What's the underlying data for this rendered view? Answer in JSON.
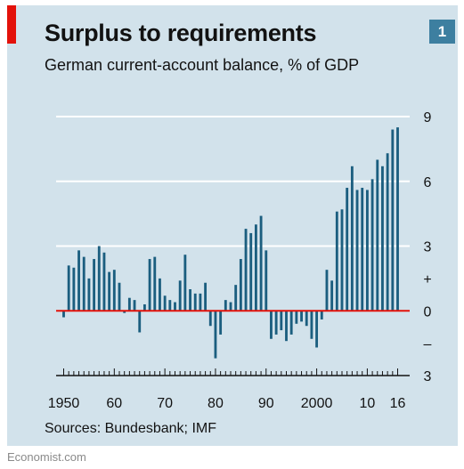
{
  "header": {
    "title": "Surplus to requirements",
    "subtitle": "German current-account balance, % of GDP",
    "chart_number": "1"
  },
  "footer": {
    "source": "Sources: Bundesbank; IMF",
    "credit": "Economist.com"
  },
  "colors": {
    "bar": "#1b5e7f",
    "zero_line": "#e3120b",
    "grid": "#ffffff",
    "panel": "#d2e2eb",
    "accent_red": "#e3120b",
    "badge": "#3d7fa0"
  },
  "chart_data": {
    "type": "bar",
    "title": "Surplus to requirements",
    "subtitle": "German current-account balance, % of GDP",
    "xlabel": "",
    "ylabel": "",
    "ylim": [
      -3,
      9
    ],
    "grid": true,
    "y_ticks": [
      {
        "value": 9,
        "label": "9"
      },
      {
        "value": 6,
        "label": "6"
      },
      {
        "value": 3,
        "label": "3"
      },
      {
        "value": 1.5,
        "label": "+"
      },
      {
        "value": 0,
        "label": "0"
      },
      {
        "value": -1.5,
        "label": "–"
      },
      {
        "value": -3,
        "label": "3"
      }
    ],
    "x_tick_labels": [
      {
        "year": 1950,
        "label": "1950"
      },
      {
        "year": 1960,
        "label": "60"
      },
      {
        "year": 1970,
        "label": "70"
      },
      {
        "year": 1980,
        "label": "80"
      },
      {
        "year": 1990,
        "label": "90"
      },
      {
        "year": 2000,
        "label": "2000"
      },
      {
        "year": 2010,
        "label": "10"
      },
      {
        "year": 2016,
        "label": "16"
      }
    ],
    "categories": [
      1950,
      1951,
      1952,
      1953,
      1954,
      1955,
      1956,
      1957,
      1958,
      1959,
      1960,
      1961,
      1962,
      1963,
      1964,
      1965,
      1966,
      1967,
      1968,
      1969,
      1970,
      1971,
      1972,
      1973,
      1974,
      1975,
      1976,
      1977,
      1978,
      1979,
      1980,
      1981,
      1982,
      1983,
      1984,
      1985,
      1986,
      1987,
      1988,
      1989,
      1990,
      1991,
      1992,
      1993,
      1994,
      1995,
      1996,
      1997,
      1998,
      1999,
      2000,
      2001,
      2002,
      2003,
      2004,
      2005,
      2006,
      2007,
      2008,
      2009,
      2010,
      2011,
      2012,
      2013,
      2014,
      2015,
      2016
    ],
    "values": [
      -0.3,
      2.1,
      2.0,
      2.8,
      2.5,
      1.5,
      2.4,
      3.0,
      2.7,
      1.8,
      1.9,
      1.3,
      -0.1,
      0.6,
      0.5,
      -1.0,
      0.3,
      2.4,
      2.5,
      1.5,
      0.7,
      0.5,
      0.4,
      1.4,
      2.6,
      1.0,
      0.8,
      0.8,
      1.3,
      -0.7,
      -2.2,
      -1.1,
      0.5,
      0.4,
      1.2,
      2.4,
      3.8,
      3.6,
      4.0,
      4.4,
      2.8,
      -1.3,
      -1.1,
      -0.9,
      -1.4,
      -1.1,
      -0.6,
      -0.5,
      -0.7,
      -1.3,
      -1.7,
      -0.4,
      1.9,
      1.4,
      4.6,
      4.7,
      5.7,
      6.7,
      5.6,
      5.7,
      5.6,
      6.1,
      7.0,
      6.7,
      7.3,
      8.4,
      8.5
    ]
  }
}
